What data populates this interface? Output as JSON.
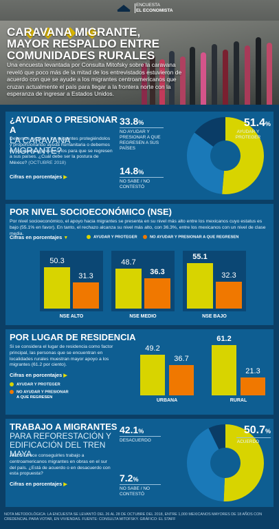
{
  "header": {
    "brand_line1": "ENCUESTA",
    "brand_line2": "EL ECONOMISTA",
    "title_line1": "CARAVANA MIGRANTE,",
    "title_line2": "MAYOR RESPALDO ENTRE",
    "title_line3": "COMUNIDADES RURALES",
    "lead": "Una encuesta levantada por Consulta Mitofsky sobre la caravana reveló que poco más de la mitad de los entrevistados estuvieron de acuerdo con que se ayude a los migrantes centroamericanos que cruzan actualmente el país para llegar a la frontera norte con la esperanza de ingresar a Estados Unidos."
  },
  "section1": {
    "title": "¿AYUDAR O PRESIONAR A",
    "subtitle": "LA CARAVANA MIGRANTE?",
    "body": "Debemos ayudar a los migrantes protegiéndolos y proporcionando ayuda humanitaria o debemos no ayudarlos y presionarlos para que se regresen a sus países. ¿Cuál debe ser la postura de México?",
    "date": "(OCTUBRE 2018)",
    "cifras": "Cifras en porcentajes"
  },
  "section2": {
    "title": "POR NIVEL SOCIOECONÓMICO (NSE)",
    "body": "Por nivel socioeconómico, el apoyo hacia migrantes se presenta en su nivel más alto entre los mexicanos cuyo estatus es bajo (55.1% en favor). En tanto, el rechazo alcanza su nivel más alto, con 36.3%, entre los mexicanos con un nivel de clase media.",
    "cifras": "Cifras en porcentajes",
    "legend_a": "AYUDAR Y PROTEGER",
    "legend_b": "NO AYUDAR Y PRESIONAR A QUE REGRESEN"
  },
  "section3": {
    "title": "POR LUGAR DE RESIDENCIA",
    "body": "Si se considera el lugar de residencia como factor principal, las personas que se encuentran en localidades rurales muestran mayor apoyo a los migrantes (61.2 por ciento).",
    "cifras": "Cifras en porcentajes",
    "legend_a": "AYUDAR Y PROTEGER",
    "legend_b_line1": "NO AYUDAR Y PRESIONAR",
    "legend_b_line2": "A QUE REGRESEN"
  },
  "section4": {
    "title": "TRABAJO A MIGRANTES",
    "subtitle1": "PARA REFORESTACIÓN Y",
    "subtitle2": "EDIFICACIÓN DEL TREN MAYA",
    "body": "AMLO ofrece conseguirles trabajo a centroamericanos migrantes en obras en el sur del país. ¿Está de acuerdo o en desacuerdo con esta propuesta?",
    "cifras": "Cifras en porcentajes"
  },
  "footer": {
    "note": "NOTA METODOLÓGICA: LA ENCUESTA SE LEVANTÓ DEL 26 AL 28 DE OCTUBRE DEL 2018, ENTRE 1,000 MEXICANOS MAYORES DE 18 AÑOS CON CREDENCIAL PARA VOTAR, EN VIVIENDAS. FUENTE: CONSULTA MITOFSKY. GRÁFICO: EL STAFF"
  },
  "colors": {
    "yellow": "#d8d400",
    "orange": "#f07800",
    "dark_blue": "#0a3c66",
    "panel_blue": "#0e5e92"
  },
  "chart_data": [
    {
      "type": "pie",
      "slices": [
        {
          "label": "AYUDAR Y PROTEGER",
          "value": 51.4,
          "display": "51.4"
        },
        {
          "label": "NO AYUDAR Y PRESIONAR A QUE REGRESEN A SUS PAÍSES",
          "value": 33.8,
          "display": "33.8"
        },
        {
          "label": "NO SABE / NO CONTESTÓ",
          "value": 14.8,
          "display": "14.8"
        }
      ],
      "unit": "%"
    },
    {
      "type": "bar",
      "categories": [
        "NSE ALTO",
        "NSE MEDIO",
        "NSE BAJO"
      ],
      "series": [
        {
          "name": "AYUDAR Y PROTEGER",
          "values": [
            50.3,
            48.7,
            55.1
          ],
          "display": [
            "50.3",
            "48.7",
            "55.1"
          ]
        },
        {
          "name": "NO AYUDAR Y PRESIONAR A QUE REGRESEN",
          "values": [
            31.3,
            36.3,
            32.3
          ],
          "display": [
            "31.3",
            "36.3",
            "32.3"
          ]
        }
      ],
      "ylim": [
        0,
        70
      ]
    },
    {
      "type": "bar",
      "categories": [
        "URBANA",
        "RURAL"
      ],
      "series": [
        {
          "name": "AYUDAR Y PROTEGER",
          "values": [
            49.2,
            61.2
          ],
          "display": [
            "49.2",
            "61.2"
          ]
        },
        {
          "name": "NO AYUDAR Y PRESIONAR A QUE REGRESEN",
          "values": [
            36.7,
            21.3
          ],
          "display": [
            "36.7",
            "21.3"
          ]
        }
      ],
      "ylim": [
        0,
        70
      ]
    },
    {
      "type": "pie",
      "slices": [
        {
          "label": "ACUERDO",
          "value": 50.7,
          "display": "50.7"
        },
        {
          "label": "DESACUERDO",
          "value": 42.1,
          "display": "42.1"
        },
        {
          "label": "NO SABE / NO CONTESTÓ",
          "value": 7.2,
          "display": "7.2"
        }
      ],
      "unit": "%"
    }
  ]
}
